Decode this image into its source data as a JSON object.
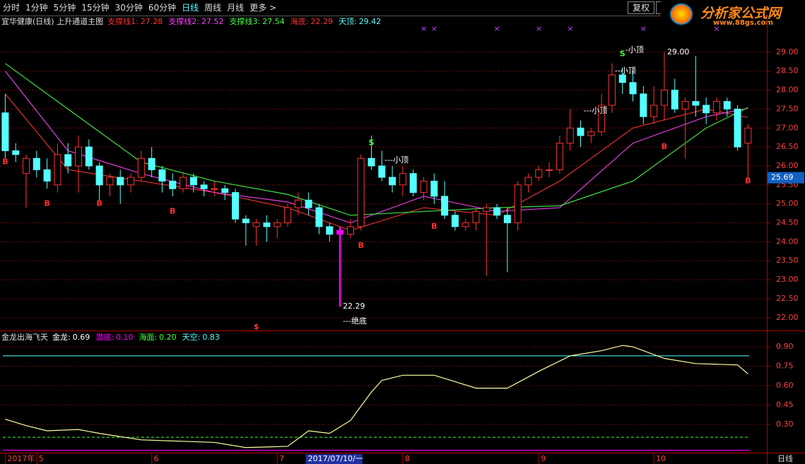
{
  "toolbar": {
    "periods": [
      "分时",
      "1分钟",
      "5分钟",
      "15分钟",
      "30分钟",
      "60分钟",
      "日线",
      "周线",
      "月线",
      "更多 >"
    ],
    "active_period": 6,
    "buttons": [
      "复权",
      "全"
    ]
  },
  "logo": {
    "title": "分析家公式网",
    "url": "www.88gs.com"
  },
  "chart_data": [
    {
      "type": "candlestick",
      "title": "宜华健康(日线) 上升通道主图",
      "legend": [
        {
          "label": "支撑线1:",
          "value": 27.28,
          "color": "#ff3232"
        },
        {
          "label": "支撑线2:",
          "value": 27.52,
          "color": "#ff40ff"
        },
        {
          "label": "支撑线3:",
          "value": 27.54,
          "color": "#40ff40"
        },
        {
          "label": "海底:",
          "value": 22.29,
          "color": "#ff3232"
        },
        {
          "label": "天顶:",
          "value": 29.42,
          "color": "#54ffff"
        }
      ],
      "x": [
        0,
        1,
        2,
        3,
        4,
        5,
        6,
        7,
        8,
        9,
        10,
        11,
        12,
        13,
        14,
        15,
        16,
        17,
        18,
        19,
        20,
        21,
        22,
        23,
        24,
        25,
        26,
        27,
        28,
        29,
        30,
        31,
        32,
        33,
        34,
        35,
        36,
        37,
        38,
        39,
        40,
        41,
        42,
        43,
        44,
        45,
        46,
        47,
        48,
        49,
        50,
        51,
        52,
        53,
        54,
        55,
        56,
        57,
        58,
        59,
        60,
        61,
        62,
        63,
        64,
        65,
        66,
        67,
        68,
        69,
        70,
        71
      ],
      "open": [
        27.4,
        26.4,
        25.8,
        26.2,
        25.9,
        25.5,
        26.3,
        26.0,
        26.5,
        26.0,
        25.5,
        25.7,
        25.5,
        25.7,
        26.2,
        25.9,
        25.6,
        25.4,
        25.7,
        25.5,
        25.4,
        25.4,
        25.3,
        24.6,
        24.4,
        24.5,
        24.4,
        24.5,
        24.9,
        25.1,
        24.9,
        24.4,
        24.3,
        24.2,
        24.4,
        26.2,
        26.0,
        25.7,
        25.5,
        25.8,
        25.3,
        25.6,
        25.2,
        24.7,
        24.4,
        24.5,
        24.8,
        24.9,
        24.7,
        24.5,
        25.5,
        25.7,
        25.9,
        25.9,
        26.6,
        27.0,
        26.8,
        26.9,
        27.6,
        28.4,
        28.2,
        27.9,
        27.3,
        27.6,
        28.0,
        27.5,
        27.7,
        27.6,
        27.4,
        27.7,
        27.5,
        26.6
      ],
      "high": [
        27.9,
        26.6,
        26.3,
        26.4,
        26.2,
        26.6,
        26.6,
        26.8,
        26.7,
        26.1,
        25.8,
        25.9,
        25.8,
        26.4,
        26.5,
        26.0,
        25.8,
        25.8,
        25.8,
        25.6,
        25.6,
        25.5,
        25.4,
        24.7,
        24.6,
        24.7,
        24.6,
        25.0,
        25.3,
        25.3,
        25.0,
        24.5,
        24.4,
        24.6,
        26.3,
        26.8,
        26.4,
        26.0,
        26.0,
        25.9,
        25.7,
        25.8,
        25.6,
        24.8,
        24.6,
        24.9,
        25.0,
        25.0,
        24.9,
        25.6,
        25.8,
        26.0,
        26.1,
        26.8,
        27.5,
        27.2,
        27.0,
        27.9,
        28.7,
        28.6,
        28.5,
        28.1,
        28.1,
        29.0,
        28.3,
        27.8,
        28.9,
        27.8,
        27.8,
        27.8,
        27.6,
        27.1
      ],
      "low": [
        26.2,
        26.1,
        24.9,
        25.7,
        25.4,
        25.3,
        25.8,
        25.3,
        25.9,
        25.1,
        25.2,
        25.0,
        25.3,
        25.6,
        25.7,
        25.3,
        25.2,
        25.3,
        25.3,
        25.2,
        25.2,
        25.1,
        24.5,
        23.9,
        23.9,
        24.0,
        24.1,
        24.4,
        24.7,
        24.7,
        24.2,
        24.0,
        22.29,
        24.1,
        24.3,
        25.9,
        25.6,
        25.3,
        25.2,
        25.2,
        25.1,
        25.0,
        24.6,
        24.3,
        24.3,
        24.3,
        23.1,
        24.6,
        23.2,
        24.3,
        25.3,
        25.6,
        25.7,
        25.8,
        26.4,
        26.5,
        26.6,
        26.8,
        27.4,
        27.9,
        27.7,
        27.1,
        27.1,
        27.2,
        27.4,
        26.2,
        27.3,
        27.1,
        27.2,
        27.3,
        26.4,
        25.69
      ],
      "close": [
        26.4,
        26.3,
        26.2,
        25.9,
        25.6,
        26.3,
        26.0,
        26.5,
        26.0,
        25.5,
        25.7,
        25.5,
        25.7,
        26.2,
        25.9,
        25.6,
        25.4,
        25.7,
        25.5,
        25.4,
        25.4,
        25.3,
        24.6,
        24.5,
        24.5,
        24.4,
        24.5,
        24.9,
        25.1,
        24.9,
        24.4,
        24.2,
        24.2,
        24.4,
        26.2,
        26.0,
        25.7,
        25.5,
        25.8,
        25.3,
        25.6,
        25.2,
        24.7,
        24.4,
        24.5,
        24.8,
        24.9,
        24.7,
        24.5,
        25.5,
        25.7,
        25.9,
        25.9,
        26.6,
        27.0,
        26.8,
        26.9,
        27.6,
        28.4,
        28.2,
        27.9,
        27.3,
        27.6,
        28.0,
        27.5,
        27.7,
        27.6,
        27.4,
        27.7,
        27.5,
        26.5,
        27.0
      ],
      "up_color": "#ff3232",
      "down_color": "#54ffff",
      "highlight_index": 32,
      "highlight_color": "#ff00ff",
      "series": [
        {
          "color": "#e03030",
          "x": [
            0,
            6,
            13,
            20,
            27,
            33,
            40,
            47,
            53,
            60,
            67,
            71
          ],
          "values": [
            27.9,
            25.9,
            25.6,
            25.3,
            24.9,
            24.3,
            24.9,
            24.7,
            25.6,
            27.0,
            27.5,
            27.28
          ]
        },
        {
          "color": "#e040e0",
          "x": [
            0,
            6,
            13,
            20,
            27,
            33,
            40,
            47,
            53,
            60,
            67,
            71
          ],
          "values": [
            28.5,
            26.4,
            25.8,
            25.3,
            25.05,
            24.5,
            25.2,
            24.8,
            24.9,
            26.6,
            27.3,
            27.52
          ]
        },
        {
          "color": "#40e040",
          "x": [
            0,
            6,
            13,
            20,
            27,
            33,
            40,
            47,
            53,
            60,
            67,
            71
          ],
          "values": [
            28.7,
            27.5,
            26.1,
            25.6,
            25.25,
            24.7,
            24.8,
            24.9,
            24.95,
            25.6,
            27.0,
            27.54
          ]
        }
      ],
      "annotations": [
        {
          "text": "B",
          "x": 0,
          "y": 26.1,
          "color": "#ff3232"
        },
        {
          "text": "B",
          "x": 4,
          "y": 25.0,
          "color": "#ff3232"
        },
        {
          "text": "B",
          "x": 9,
          "y": 25.0,
          "color": "#ff3232"
        },
        {
          "text": "B",
          "x": 16,
          "y": 24.8,
          "color": "#ff3232"
        },
        {
          "text": "B",
          "x": 34,
          "y": 23.9,
          "color": "#ff3232"
        },
        {
          "text": "B",
          "x": 41,
          "y": 24.4,
          "color": "#ff3232"
        },
        {
          "text": "B",
          "x": 63,
          "y": 26.5,
          "color": "#ff3232"
        },
        {
          "text": "B",
          "x": 71,
          "y": 25.6,
          "color": "#ff3232"
        },
        {
          "text": "S",
          "x": 35,
          "y": 26.6,
          "color": "#40ff40"
        },
        {
          "text": "S",
          "x": 59,
          "y": 28.95,
          "color": "#40ff40"
        },
        {
          "text": "---小顶",
          "x": 36,
          "y": 26.15,
          "color": "#ffffff"
        },
        {
          "text": "---小顶",
          "x": 55,
          "y": 27.45,
          "color": "#ffffff"
        },
        {
          "text": "--小顶",
          "x": 58,
          "y": 28.5,
          "color": "#ffffff"
        },
        {
          "text": "-小顶",
          "x": 59,
          "y": 29.05,
          "color": "#ffffff"
        },
        {
          "text": "29.00",
          "x": 63,
          "y": 29.0,
          "color": "#ffffff"
        },
        {
          "text": "22.29",
          "x": 32,
          "y": 22.29,
          "color": "#ffffff"
        },
        {
          "text": "---绝底",
          "x": 32,
          "y": 21.9,
          "color": "#ffffff"
        },
        {
          "text": "$",
          "x": 24,
          "y": 21.75,
          "color": "#ff3232"
        }
      ],
      "signal_marks": {
        "symbol": "×",
        "color": "#c040ff",
        "x": [
          40,
          41,
          47,
          51,
          54,
          61,
          68
        ]
      },
      "price_tag": 25.69,
      "xlim": [
        -0.5,
        72.8
      ],
      "ylim": [
        21.68,
        29.63
      ],
      "yticks": [
        {
          "value": 22,
          "label": "22.00"
        },
        {
          "value": 22.5,
          "label": "22.50"
        },
        {
          "value": 23,
          "label": "23.00"
        },
        {
          "value": 23.5,
          "label": "23.50"
        },
        {
          "value": 24,
          "label": "24.00"
        },
        {
          "value": 24.5,
          "label": "24.50"
        },
        {
          "value": 25,
          "label": "25.00"
        },
        {
          "value": 25.5,
          "label": "25.50"
        },
        {
          "value": 26,
          "label": "26.00"
        },
        {
          "value": 26.5,
          "label": "26.50"
        },
        {
          "value": 27,
          "label": "27.00"
        },
        {
          "value": 27.5,
          "label": "27.50"
        },
        {
          "value": 28,
          "label": "28.00"
        },
        {
          "value": 28.5,
          "label": "28.50"
        },
        {
          "value": 29,
          "label": "29.00"
        }
      ],
      "grid": true
    },
    {
      "type": "line",
      "title": "金龙出海飞天",
      "legend": [
        {
          "label": "金龙:",
          "value": 0.69,
          "color": "#ffffff"
        },
        {
          "label": "潜底:",
          "value": 0.1,
          "value_label": "0.10",
          "color": "#ff00ff",
          "line": "solid"
        },
        {
          "label": "海面:",
          "value": 0.2,
          "value_label": "0.20",
          "color": "#40ff40",
          "line": "dashed"
        },
        {
          "label": "天空:",
          "value": 0.83,
          "color": "#54ffff",
          "line": "solid"
        }
      ],
      "series": [
        {
          "color": "#ffffa0",
          "x": [
            0,
            2,
            4,
            7,
            9,
            13,
            20,
            23,
            27,
            29,
            31,
            33,
            35,
            36,
            38,
            41,
            43,
            45,
            48,
            51,
            54,
            57,
            59,
            60,
            63,
            66,
            70,
            71
          ],
          "values": [
            0.34,
            0.29,
            0.25,
            0.26,
            0.23,
            0.18,
            0.16,
            0.12,
            0.13,
            0.25,
            0.23,
            0.33,
            0.55,
            0.64,
            0.68,
            0.68,
            0.63,
            0.58,
            0.58,
            0.71,
            0.83,
            0.87,
            0.91,
            0.9,
            0.81,
            0.77,
            0.76,
            0.69
          ]
        }
      ],
      "xlim": [
        -0.5,
        72.8
      ],
      "ylim": [
        0.086,
        1.015
      ],
      "yticks": [
        {
          "value": 0.3,
          "label": "0.30"
        },
        {
          "value": 0.45,
          "label": "0.45"
        },
        {
          "value": 0.6,
          "label": "0.60"
        },
        {
          "value": 0.75,
          "label": "0.75"
        },
        {
          "value": 0.9,
          "label": "0.90"
        }
      ],
      "grid": true
    }
  ],
  "x_axis": {
    "ticks": [
      {
        "value": 0,
        "label": "2017年"
      },
      {
        "value": 3,
        "label": "5"
      },
      {
        "value": 14,
        "label": "6"
      },
      {
        "value": 26,
        "label": "7"
      },
      {
        "value": 38,
        "label": "8"
      },
      {
        "value": 51,
        "label": "9"
      },
      {
        "value": 62,
        "label": "10"
      }
    ],
    "cursor": {
      "value": 29,
      "label": "2017/07/10/一"
    }
  },
  "status": "日线"
}
